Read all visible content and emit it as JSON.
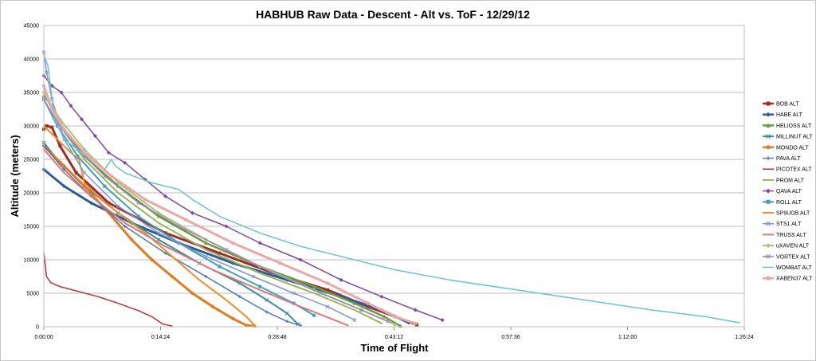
{
  "chart_data": {
    "type": "line",
    "title": "HABHUB Raw Data - Descent - Alt vs. ToF - 12/29/12",
    "xlabel": "Time of Flight",
    "ylabel": "Altitude (meters)",
    "xlim": [
      0,
      5184
    ],
    "ylim": [
      0,
      45000
    ],
    "xticks": [
      0,
      864,
      1728,
      2592,
      3456,
      4320,
      5184
    ],
    "xtick_labels": [
      "0:00:00",
      "0:14:24",
      "0:28:48",
      "0:43:12",
      "0:57:36",
      "1:12:00",
      "1:26:24"
    ],
    "yticks": [
      0,
      5000,
      10000,
      15000,
      20000,
      25000,
      30000,
      35000,
      40000,
      45000
    ],
    "grid": true,
    "legend_position": "right",
    "series": [
      {
        "name": "BOB ALT",
        "color": "#a32a2a",
        "marker": "square",
        "width": 3,
        "points": [
          [
            0,
            29500
          ],
          [
            20,
            30000
          ],
          [
            60,
            29800
          ],
          [
            120,
            27000
          ],
          [
            240,
            23000
          ],
          [
            480,
            18500
          ],
          [
            900,
            14000
          ],
          [
            1300,
            11000
          ],
          [
            1700,
            8000
          ],
          [
            2100,
            5500
          ],
          [
            2400,
            3000
          ],
          [
            2600,
            1500
          ],
          [
            2760,
            300
          ]
        ]
      },
      {
        "name": "HABE ALT",
        "color": "#2e5c99",
        "marker": "diamond",
        "width": 3,
        "points": [
          [
            0,
            23500
          ],
          [
            150,
            21000
          ],
          [
            350,
            18500
          ],
          [
            650,
            15500
          ],
          [
            1000,
            12500
          ],
          [
            1400,
            9500
          ],
          [
            1800,
            7000
          ],
          [
            2200,
            4500
          ],
          [
            2500,
            2500
          ],
          [
            2700,
            600
          ]
        ]
      },
      {
        "name": "HELIOSS ALT",
        "color": "#6f9a3b",
        "marker": "triangle",
        "width": 2.5,
        "points": [
          [
            0,
            34500
          ],
          [
            60,
            33000
          ],
          [
            150,
            29500
          ],
          [
            300,
            25500
          ],
          [
            550,
            21000
          ],
          [
            850,
            16500
          ],
          [
            1200,
            12500
          ],
          [
            1600,
            9000
          ],
          [
            2000,
            6000
          ],
          [
            2300,
            3500
          ],
          [
            2520,
            1500
          ],
          [
            2640,
            100
          ]
        ]
      },
      {
        "name": "MILLINUT ALT",
        "color": "#3a8aa0",
        "marker": "x",
        "width": 2,
        "points": [
          [
            0,
            27500
          ],
          [
            120,
            24500
          ],
          [
            300,
            21000
          ],
          [
            550,
            17000
          ],
          [
            850,
            13000
          ],
          [
            1150,
            9500
          ],
          [
            1450,
            6500
          ],
          [
            1650,
            4000
          ],
          [
            1800,
            2000
          ],
          [
            1880,
            400
          ]
        ]
      },
      {
        "name": "MONDO ALT",
        "color": "#e07b1f",
        "marker": "circle",
        "width": 3,
        "points": [
          [
            0,
            27000
          ],
          [
            150,
            24000
          ],
          [
            300,
            21000
          ],
          [
            480,
            17000
          ],
          [
            650,
            13000
          ],
          [
            800,
            10000
          ],
          [
            950,
            7500
          ],
          [
            1100,
            5000
          ],
          [
            1250,
            3000
          ],
          [
            1400,
            1200
          ],
          [
            1500,
            200
          ],
          [
            1560,
            100
          ]
        ]
      },
      {
        "name": "PAVA ALT",
        "color": "#4f78b5",
        "marker": "plus",
        "width": 1.5,
        "points": [
          [
            0,
            27000
          ],
          [
            150,
            23500
          ],
          [
            350,
            19500
          ],
          [
            600,
            15000
          ],
          [
            900,
            11000
          ],
          [
            1200,
            7500
          ],
          [
            1450,
            4500
          ],
          [
            1650,
            2200
          ],
          [
            1800,
            800
          ],
          [
            1900,
            200
          ]
        ]
      },
      {
        "name": "PICOTEX ALT",
        "color": "#b03636",
        "marker": "none",
        "width": 1.5,
        "points": [
          [
            0,
            11000
          ],
          [
            20,
            7500
          ],
          [
            50,
            6600
          ],
          [
            120,
            6000
          ],
          [
            250,
            5300
          ],
          [
            400,
            4500
          ],
          [
            550,
            3500
          ],
          [
            700,
            2400
          ],
          [
            800,
            1500
          ],
          [
            880,
            400
          ],
          [
            950,
            100
          ]
        ]
      },
      {
        "name": "PROM ALT",
        "color": "#98b85a",
        "marker": "none",
        "width": 2,
        "points": [
          [
            0,
            35000
          ],
          [
            120,
            30000
          ],
          [
            300,
            25000
          ],
          [
            550,
            20000
          ],
          [
            850,
            15500
          ],
          [
            1200,
            11500
          ],
          [
            1600,
            8000
          ],
          [
            2000,
            5000
          ],
          [
            2300,
            2500
          ],
          [
            2500,
            500
          ]
        ]
      },
      {
        "name": "QAVA ALT",
        "color": "#7a4a9c",
        "marker": "diamond",
        "width": 1.5,
        "points": [
          [
            0,
            37500
          ],
          [
            60,
            36000
          ],
          [
            130,
            35000
          ],
          [
            200,
            33000
          ],
          [
            280,
            31000
          ],
          [
            380,
            28500
          ],
          [
            480,
            26000
          ],
          [
            600,
            24500
          ],
          [
            750,
            22000
          ],
          [
            900,
            19500
          ],
          [
            1100,
            17000
          ],
          [
            1350,
            15000
          ],
          [
            1600,
            12500
          ],
          [
            1900,
            10000
          ],
          [
            2200,
            7000
          ],
          [
            2500,
            4500
          ],
          [
            2750,
            2500
          ],
          [
            2950,
            1000
          ]
        ]
      },
      {
        "name": "ROLL ALT",
        "color": "#3fa1b8",
        "marker": "square",
        "width": 2,
        "points": [
          [
            0,
            34000
          ],
          [
            100,
            30000
          ],
          [
            250,
            25500
          ],
          [
            450,
            21000
          ],
          [
            700,
            16500
          ],
          [
            1000,
            12500
          ],
          [
            1300,
            9000
          ],
          [
            1600,
            6000
          ],
          [
            1850,
            3500
          ],
          [
            2000,
            1700
          ]
        ]
      },
      {
        "name": "SP9UOB ALT",
        "color": "#f08d2a",
        "marker": "none",
        "width": 2,
        "points": [
          [
            0,
            30000
          ],
          [
            100,
            28000
          ],
          [
            200,
            26000
          ],
          [
            260,
            25000
          ],
          [
            300,
            21500
          ],
          [
            400,
            19500
          ],
          [
            550,
            17000
          ],
          [
            750,
            14000
          ],
          [
            950,
            10500
          ],
          [
            1150,
            7000
          ],
          [
            1350,
            4000
          ],
          [
            1500,
            1500
          ],
          [
            1560,
            200
          ]
        ]
      },
      {
        "name": "STS1 ALT",
        "color": "#7e98c9",
        "marker": "x",
        "width": 1.5,
        "points": [
          [
            0,
            41000
          ],
          [
            20,
            38000
          ],
          [
            60,
            34000
          ],
          [
            150,
            28000
          ],
          [
            300,
            23000
          ],
          [
            550,
            18000
          ],
          [
            850,
            14000
          ],
          [
            1200,
            10500
          ],
          [
            1550,
            7500
          ],
          [
            1850,
            5000
          ],
          [
            2100,
            3000
          ],
          [
            2300,
            1000
          ]
        ]
      },
      {
        "name": "TRUSS ALT",
        "color": "#d97a7a",
        "marker": "none",
        "width": 2,
        "points": [
          [
            0,
            26500
          ],
          [
            150,
            23000
          ],
          [
            350,
            19500
          ],
          [
            600,
            15500
          ],
          [
            900,
            12000
          ],
          [
            1250,
            8500
          ],
          [
            1600,
            5500
          ],
          [
            1900,
            3000
          ],
          [
            2150,
            1000
          ],
          [
            2250,
            200
          ]
        ]
      },
      {
        "name": "uXAVEN ALT",
        "color": "#a8c77c",
        "marker": "diamond",
        "width": 2,
        "points": [
          [
            0,
            35000
          ],
          [
            120,
            31000
          ],
          [
            300,
            26500
          ],
          [
            550,
            21500
          ],
          [
            850,
            17000
          ],
          [
            1200,
            13000
          ],
          [
            1600,
            9000
          ],
          [
            2000,
            5500
          ],
          [
            2350,
            2500
          ],
          [
            2600,
            300
          ]
        ]
      },
      {
        "name": "VORTEX ALT",
        "color": "#9b87c2",
        "marker": "x",
        "width": 1.5,
        "points": [
          [
            0,
            34000
          ],
          [
            100,
            30500
          ],
          [
            250,
            26500
          ],
          [
            450,
            22500
          ],
          [
            700,
            18500
          ],
          [
            1000,
            15000
          ],
          [
            1350,
            11500
          ],
          [
            1700,
            8000
          ],
          [
            2050,
            5000
          ],
          [
            2350,
            2500
          ],
          [
            2550,
            800
          ]
        ]
      },
      {
        "name": "WOMBAT ALT",
        "color": "#6cc0d4",
        "marker": "none",
        "width": 1.5,
        "points": [
          [
            0,
            40500
          ],
          [
            30,
            39000
          ],
          [
            80,
            31000
          ],
          [
            150,
            28000
          ],
          [
            250,
            26500
          ],
          [
            350,
            25000
          ],
          [
            450,
            23500
          ],
          [
            500,
            25000
          ],
          [
            530,
            24000
          ],
          [
            600,
            23000
          ],
          [
            800,
            21500
          ],
          [
            1000,
            20500
          ],
          [
            1100,
            19000
          ],
          [
            1300,
            16500
          ],
          [
            1600,
            14000
          ],
          [
            1900,
            12000
          ],
          [
            2200,
            10500
          ],
          [
            2600,
            8500
          ],
          [
            3000,
            7000
          ],
          [
            3500,
            5500
          ],
          [
            4000,
            4000
          ],
          [
            4500,
            2500
          ],
          [
            4900,
            1500
          ],
          [
            5150,
            600
          ]
        ]
      },
      {
        "name": "XABEN37 ALT",
        "color": "#e8a8a8",
        "marker": "square",
        "width": 3,
        "points": [
          [
            0,
            36000
          ],
          [
            60,
            32500
          ],
          [
            150,
            29500
          ],
          [
            300,
            26000
          ],
          [
            500,
            22500
          ],
          [
            750,
            19000
          ],
          [
            1050,
            16000
          ],
          [
            1400,
            12500
          ],
          [
            1750,
            9500
          ],
          [
            2100,
            6500
          ],
          [
            2400,
            3500
          ],
          [
            2600,
            1500
          ],
          [
            2750,
            500
          ]
        ]
      }
    ]
  }
}
